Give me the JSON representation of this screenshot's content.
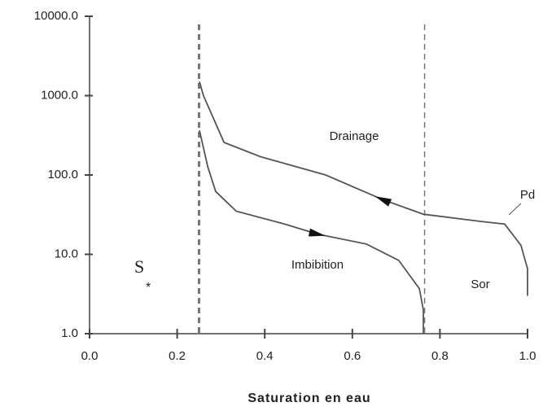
{
  "chart_data": {
    "type": "line",
    "log_y": true,
    "xlabel": "Saturation en eau",
    "xlim": [
      0,
      1
    ],
    "ylim": [
      1,
      10000
    ],
    "xticks": [
      {
        "value": 0,
        "label": "0.0"
      },
      0.2,
      0.4,
      0.6,
      0.8,
      {
        "value": 1,
        "label": "1.0"
      }
    ],
    "yticks": [
      {
        "value": 1,
        "label": "1.0"
      },
      {
        "value": 10,
        "label": "10.0"
      },
      {
        "value": 100,
        "label": "100.0"
      },
      {
        "value": 1000,
        "label": "1000.0"
      },
      {
        "value": 10000,
        "label": "10000.0"
      }
    ],
    "vlines": [
      0.25,
      0.765
    ],
    "series": [
      {
        "name": "Drainage",
        "color": "#555555",
        "x": [
          1.0,
          1.0,
          0.985,
          0.948,
          0.892,
          0.762,
          0.669,
          0.539,
          0.39,
          0.307,
          0.26,
          0.251
        ],
        "values": [
          3,
          6.6,
          13,
          24,
          26,
          32,
          49,
          100,
          170,
          257,
          1000,
          1500
        ]
      },
      {
        "name": "Imbibition",
        "color": "#555555",
        "x": [
          0.251,
          0.27,
          0.288,
          0.335,
          0.446,
          0.52,
          0.632,
          0.706,
          0.753,
          0.762,
          0.762
        ],
        "values": [
          365,
          126,
          62,
          35,
          24,
          18,
          13.5,
          8.4,
          3.7,
          2.0,
          1.0
        ]
      }
    ],
    "annotations": {
      "pd": "Pd",
      "sor": "Sor",
      "s": "S",
      "sub": "*"
    }
  }
}
